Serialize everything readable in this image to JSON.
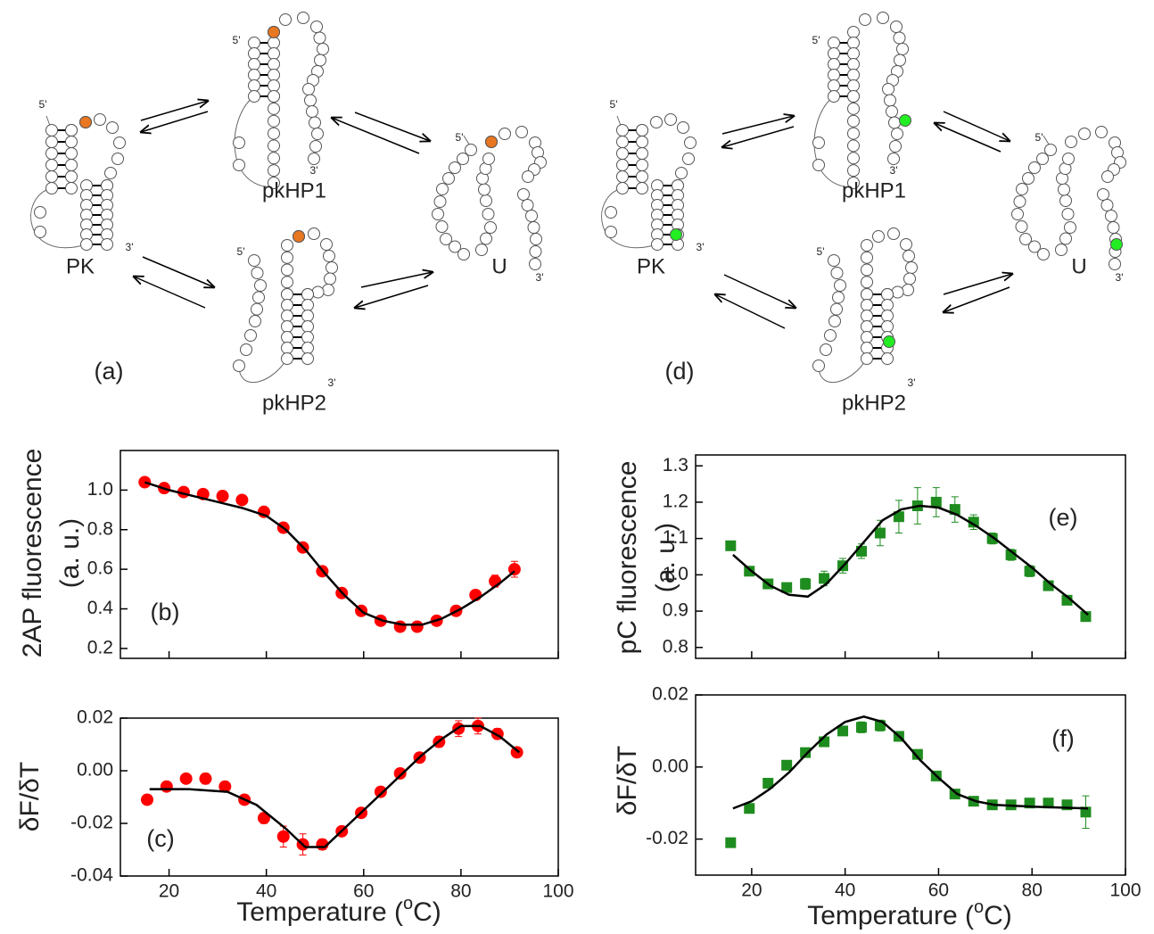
{
  "diagrams": [
    {
      "label": "(a)",
      "states": [
        "PK",
        "pkHP1",
        "pkHP2",
        "U"
      ],
      "five_prime": "5'",
      "three_prime": "3'",
      "accent": "#e87722"
    },
    {
      "label": "(d)",
      "states": [
        "PK",
        "pkHP1",
        "pkHP2",
        "U"
      ],
      "five_prime": "5'",
      "three_prime": "3'",
      "accent": "#22ee22"
    }
  ],
  "chart_data": [
    {
      "type": "scatter",
      "panel_label": "(b)",
      "ylabel": [
        "2AP fluorescence",
        "(a. u.)"
      ],
      "xlim": [
        10,
        100
      ],
      "xticks": [
        20,
        40,
        60,
        80,
        100
      ],
      "xtick_labels": false,
      "ylim": [
        0.15,
        1.2
      ],
      "yticks": [
        0.2,
        0.4,
        0.6,
        0.8,
        {
          "value": 1,
          "label": "1.0"
        }
      ],
      "series": [
        {
          "marker": "circle",
          "color": "#ff0000",
          "x": [
            15,
            19,
            23,
            27,
            31,
            35,
            39.5,
            43.5,
            47.5,
            51.5,
            55.5,
            59.5,
            63.5,
            67.5,
            71,
            75,
            79,
            83,
            87,
            91
          ],
          "values": [
            1.04,
            1.01,
            0.99,
            0.98,
            0.97,
            0.95,
            0.89,
            0.81,
            0.71,
            0.59,
            0.48,
            0.39,
            0.34,
            0.31,
            0.31,
            0.34,
            0.39,
            0.47,
            0.54,
            0.6
          ],
          "errors": [
            0.01,
            0.01,
            0.01,
            0.01,
            0.01,
            0.01,
            0.01,
            0.01,
            0.01,
            0.02,
            0.02,
            0.02,
            0.01,
            0.01,
            0.01,
            0.01,
            0.01,
            0.02,
            0.03,
            0.04
          ]
        },
        {
          "marker": "line",
          "color": "#000000",
          "x": [
            15,
            20,
            25,
            30,
            35,
            40,
            44,
            48,
            52,
            56,
            60,
            64,
            68,
            72,
            76,
            80,
            84,
            88,
            91
          ],
          "values": [
            1.04,
            1.0,
            0.97,
            0.94,
            0.91,
            0.87,
            0.8,
            0.7,
            0.58,
            0.47,
            0.38,
            0.34,
            0.32,
            0.32,
            0.35,
            0.4,
            0.46,
            0.53,
            0.59
          ]
        }
      ]
    },
    {
      "type": "scatter",
      "panel_label": "(c)",
      "ylabel": [
        "δF/δT"
      ],
      "xlabel": [
        "Temperature (",
        "o",
        "C)"
      ],
      "xlim": [
        10,
        100
      ],
      "xticks": [
        20,
        40,
        60,
        80,
        100
      ],
      "xtick_labels": true,
      "ylim": [
        -0.04,
        0.02
      ],
      "yticks": [
        -0.04,
        -0.02,
        {
          "value": 0,
          "label": "0.00"
        },
        0.02
      ],
      "series": [
        {
          "marker": "circle",
          "color": "#ff0000",
          "x": [
            15.5,
            19.5,
            23.5,
            27.5,
            31.5,
            35.5,
            39.5,
            43.5,
            47.5,
            51.5,
            55.5,
            59.5,
            63.5,
            67.5,
            71.5,
            75.5,
            79.5,
            83.5,
            87.5,
            91.5
          ],
          "values": [
            -0.011,
            -0.006,
            -0.003,
            -0.003,
            -0.006,
            -0.011,
            -0.018,
            -0.025,
            -0.028,
            -0.028,
            -0.023,
            -0.016,
            -0.008,
            -0.001,
            0.005,
            0.011,
            0.016,
            0.017,
            0.014,
            0.007
          ],
          "errors": [
            0.001,
            0.001,
            0.001,
            0.002,
            0.001,
            0.001,
            0.002,
            0.004,
            0.004,
            0.002,
            0.001,
            0.001,
            0.001,
            0.001,
            0.001,
            0.002,
            0.003,
            0.003,
            0.002,
            0.001
          ]
        },
        {
          "marker": "line",
          "color": "#000000",
          "x": [
            16,
            24,
            32,
            38,
            44,
            48,
            52,
            56,
            60,
            64,
            68,
            72,
            76,
            80,
            84,
            88,
            92
          ],
          "values": [
            -0.007,
            -0.007,
            -0.008,
            -0.013,
            -0.022,
            -0.029,
            -0.029,
            -0.022,
            -0.015,
            -0.008,
            -0.001,
            0.006,
            0.012,
            0.017,
            0.017,
            0.013,
            0.007
          ]
        }
      ]
    },
    {
      "type": "scatter",
      "panel_label": "(e)",
      "ylabel": [
        "pC fluorescence",
        "(a. u.)"
      ],
      "xlim": [
        8,
        100
      ],
      "xticks": [
        20,
        40,
        60,
        80,
        100
      ],
      "xtick_labels": false,
      "ylim": [
        0.77,
        1.33
      ],
      "yticks": [
        0.8,
        0.9,
        {
          "value": 1,
          "label": "1.0"
        },
        1.1,
        1.2,
        1.3
      ],
      "series": [
        {
          "marker": "square",
          "color": "#1e8c1e",
          "x": [
            15.5,
            19.5,
            23.5,
            27.5,
            31.5,
            35.5,
            39.5,
            43.5,
            47.5,
            51.5,
            55.5,
            59.5,
            63.5,
            67.5,
            71.5,
            75.5,
            79.5,
            83.5,
            87.5,
            91.5
          ],
          "values": [
            1.08,
            1.01,
            0.975,
            0.965,
            0.975,
            0.99,
            1.025,
            1.065,
            1.115,
            1.16,
            1.19,
            1.2,
            1.18,
            1.145,
            1.1,
            1.055,
            1.01,
            0.97,
            0.93,
            0.885
          ],
          "errors": [
            0.005,
            0.005,
            0.005,
            0.005,
            0.015,
            0.02,
            0.02,
            0.02,
            0.035,
            0.045,
            0.05,
            0.04,
            0.035,
            0.02,
            0.015,
            0.015,
            0.015,
            0.01,
            0.01,
            0.01
          ]
        },
        {
          "marker": "line",
          "color": "#000000",
          "x": [
            16,
            20,
            24,
            28,
            32,
            36,
            40,
            44,
            48,
            52,
            56,
            60,
            64,
            68,
            72,
            76,
            80,
            84,
            88,
            92
          ],
          "values": [
            1.055,
            1.01,
            0.97,
            0.945,
            0.94,
            0.975,
            1.03,
            1.09,
            1.15,
            1.18,
            1.19,
            1.185,
            1.165,
            1.135,
            1.1,
            1.06,
            1.02,
            0.975,
            0.935,
            0.89
          ]
        }
      ]
    },
    {
      "type": "scatter",
      "panel_label": "(f)",
      "ylabel": [
        "δF/δT"
      ],
      "xlabel": [
        "Temperature (",
        "o",
        "C)"
      ],
      "xlim": [
        8,
        100
      ],
      "xticks": [
        20,
        40,
        60,
        80,
        100
      ],
      "xtick_labels": true,
      "ylim": [
        -0.03,
        0.02
      ],
      "yticks": [
        -0.02,
        {
          "value": 0,
          "label": "0.00"
        },
        0.02
      ],
      "series": [
        {
          "marker": "square",
          "color": "#1e8c1e",
          "x": [
            15.5,
            19.5,
            23.5,
            27.5,
            31.5,
            35.5,
            39.5,
            43.5,
            47.5,
            51.5,
            55.5,
            59.5,
            63.5,
            67.5,
            71.5,
            75.5,
            79.5,
            83.5,
            87.5,
            91.5
          ],
          "values": [
            -0.021,
            -0.0115,
            -0.0045,
            0.0005,
            0.004,
            0.007,
            0.01,
            0.011,
            0.0115,
            0.0085,
            0.0035,
            -0.0025,
            -0.0075,
            -0.0095,
            -0.0105,
            -0.0105,
            -0.01,
            -0.01,
            -0.0105,
            -0.0125
          ],
          "errors": [
            0.0005,
            0.0005,
            0.001,
            0.001,
            0.001,
            0.001,
            0.001,
            0.0015,
            0.0015,
            0.001,
            0.001,
            0.001,
            0.001,
            0.001,
            0.001,
            0.0005,
            0.0005,
            0.0005,
            0.0005,
            0.0045
          ]
        },
        {
          "marker": "line",
          "color": "#000000",
          "x": [
            16,
            20,
            24,
            28,
            32,
            36,
            40,
            44,
            48,
            52,
            56,
            60,
            64,
            68,
            72,
            80,
            92
          ],
          "values": [
            -0.0115,
            -0.0095,
            -0.006,
            -0.0015,
            0.004,
            0.009,
            0.0125,
            0.014,
            0.0125,
            0.008,
            0.002,
            -0.003,
            -0.0075,
            -0.0095,
            -0.0105,
            -0.011,
            -0.0115
          ]
        }
      ]
    }
  ]
}
